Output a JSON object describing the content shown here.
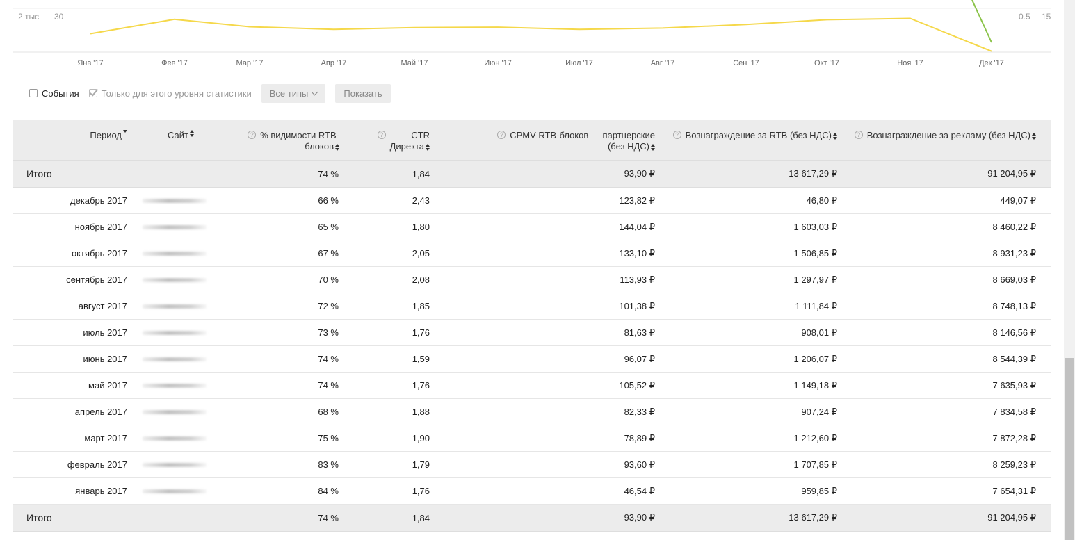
{
  "chart": {
    "left_axis_labels": [
      "2 тыс",
      "30"
    ],
    "right_axis_labels": [
      "0.5",
      "15"
    ],
    "months": [
      "Янв '17",
      "Фев '17",
      "Мар '17",
      "Апр '17",
      "Май '17",
      "Июн '17",
      "Июл '17",
      "Авг '17",
      "Сен '17",
      "Окт '17",
      "Ноя '17",
      "Дек '17"
    ],
    "line_color": "#f5d84a",
    "accent_line_color": "#8bc34a",
    "series_relative_level": [
      0.58,
      0.25,
      0.42,
      0.48,
      0.44,
      0.43,
      0.48,
      0.45,
      0.37,
      0.26,
      0.23,
      0.98
    ]
  },
  "toolbar": {
    "events_label": "События",
    "events_checked": false,
    "level_only_label": "Только для этого уровня статистики",
    "level_only_checked": true,
    "types_label": "Все типы",
    "show_label": "Показать"
  },
  "table": {
    "headers": {
      "period": "Период",
      "site": "Сайт",
      "visibility_1": "% видимости RTB-",
      "visibility_2": "блоков",
      "ctr_1": "CTR",
      "ctr_2": "Директа",
      "cpmv_1": "CPMV RTB-блоков — партнерские",
      "cpmv_2": "(без НДС)",
      "reward_rtb": "Вознаграждение за RTB (без НДС)",
      "reward_ads": "Вознаграждение за рекламу (без НДС)",
      "help_glyph": "?"
    },
    "total": {
      "label": "Итого",
      "visibility": "74 %",
      "ctr": "1,84",
      "cpmv": "93,90 ₽",
      "reward_rtb": "13 617,29 ₽",
      "reward_ads": "91 204,95 ₽"
    },
    "rows": [
      {
        "period": "декабрь 2017",
        "visibility": "66 %",
        "ctr": "2,43",
        "cpmv": "123,82 ₽",
        "reward_rtb": "46,80 ₽",
        "reward_ads": "449,07 ₽"
      },
      {
        "period": "ноябрь 2017",
        "visibility": "65 %",
        "ctr": "1,80",
        "cpmv": "144,04 ₽",
        "reward_rtb": "1 603,03 ₽",
        "reward_ads": "8 460,22 ₽"
      },
      {
        "period": "октябрь 2017",
        "visibility": "67 %",
        "ctr": "2,05",
        "cpmv": "133,10 ₽",
        "reward_rtb": "1 506,85 ₽",
        "reward_ads": "8 931,23 ₽"
      },
      {
        "period": "сентябрь 2017",
        "visibility": "70 %",
        "ctr": "2,08",
        "cpmv": "113,93 ₽",
        "reward_rtb": "1 297,97 ₽",
        "reward_ads": "8 669,03 ₽"
      },
      {
        "period": "август 2017",
        "visibility": "72 %",
        "ctr": "1,85",
        "cpmv": "101,38 ₽",
        "reward_rtb": "1 111,84 ₽",
        "reward_ads": "8 748,13 ₽"
      },
      {
        "period": "июль 2017",
        "visibility": "73 %",
        "ctr": "1,76",
        "cpmv": "81,63 ₽",
        "reward_rtb": "908,01 ₽",
        "reward_ads": "8 146,56 ₽"
      },
      {
        "period": "июнь 2017",
        "visibility": "74 %",
        "ctr": "1,59",
        "cpmv": "96,07 ₽",
        "reward_rtb": "1 206,07 ₽",
        "reward_ads": "8 544,39 ₽"
      },
      {
        "period": "май 2017",
        "visibility": "74 %",
        "ctr": "1,76",
        "cpmv": "105,52 ₽",
        "reward_rtb": "1 149,18 ₽",
        "reward_ads": "7 635,93 ₽"
      },
      {
        "period": "апрель 2017",
        "visibility": "68 %",
        "ctr": "1,88",
        "cpmv": "82,33 ₽",
        "reward_rtb": "907,24 ₽",
        "reward_ads": "7 834,58 ₽"
      },
      {
        "period": "март 2017",
        "visibility": "75 %",
        "ctr": "1,90",
        "cpmv": "78,89 ₽",
        "reward_rtb": "1 212,60 ₽",
        "reward_ads": "7 872,28 ₽"
      },
      {
        "period": "февраль 2017",
        "visibility": "83 %",
        "ctr": "1,79",
        "cpmv": "93,60 ₽",
        "reward_rtb": "1 707,85 ₽",
        "reward_ads": "8 259,23 ₽"
      },
      {
        "period": "январь 2017",
        "visibility": "84 %",
        "ctr": "1,76",
        "cpmv": "46,54 ₽",
        "reward_rtb": "959,85 ₽",
        "reward_ads": "7 654,31 ₽"
      }
    ]
  }
}
